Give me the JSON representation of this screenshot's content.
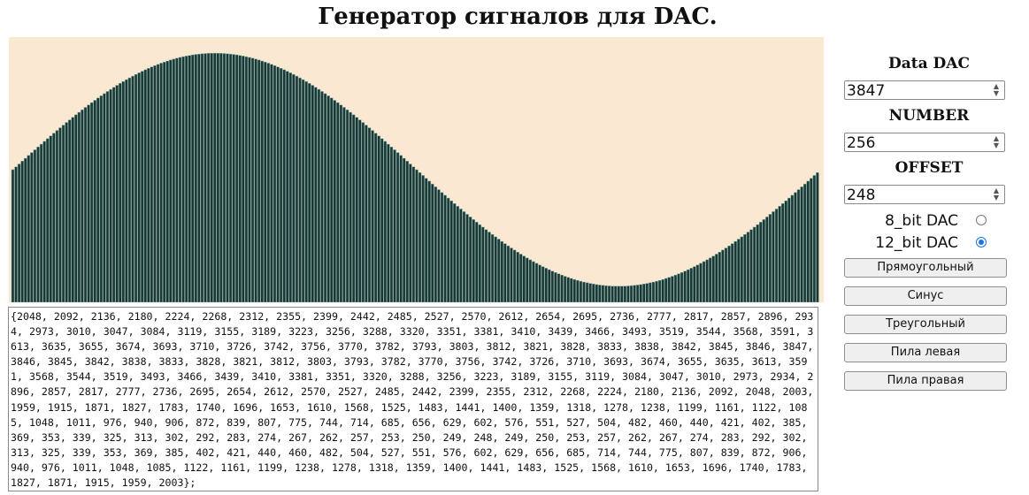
{
  "title": "Генератор сигналов для DAC.",
  "controls": {
    "data_dac_label": "Data DAC",
    "data_dac_value": "3847",
    "number_label": "NUMBER",
    "number_value": "256",
    "offset_label": "OFFSET",
    "offset_value": "248",
    "radio_8bit_label": "8_bit DAC",
    "radio_12bit_label": "12_bit DAC",
    "selected_mode": "12_bit DAC"
  },
  "buttons": {
    "square": "Прямоугольный",
    "sine": "Синус",
    "triangle": "Треугольный",
    "saw_left": "Пила левая",
    "saw_right": "Пила правая"
  },
  "output_text": "{2048, 2092, 2136, 2180, 2224, 2268, 2312, 2355, 2399, 2442, 2485, 2527, 2570, 2612, 2654, 2695, 2736, 2777, 2817, 2857, 2896, 2934, 2973, 3010, 3047, 3084, 3119, 3155, 3189, 3223, 3256, 3288, 3320, 3351, 3381, 3410, 3439, 3466, 3493, 3519, 3544, 3568, 3591, 3613, 3635, 3655, 3674, 3693, 3710, 3726, 3742, 3756, 3770, 3782, 3793, 3803, 3812, 3821, 3828, 3833, 3838, 3842, 3845, 3846, 3847, 3846, 3845, 3842, 3838, 3833, 3828, 3821, 3812, 3803, 3793, 3782, 3770, 3756, 3742, 3726, 3710, 3693, 3674, 3655, 3635, 3613, 3591, 3568, 3544, 3519, 3493, 3466, 3439, 3410, 3381, 3351, 3320, 3288, 3256, 3223, 3189, 3155, 3119, 3084, 3047, 3010, 2973, 2934, 2896, 2857, 2817, 2777, 2736, 2695, 2654, 2612, 2570, 2527, 2485, 2442, 2399, 2355, 2312, 2268, 2224, 2180, 2136, 2092, 2048, 2003, 1959, 1915, 1871, 1827, 1783, 1740, 1696, 1653, 1610, 1568, 1525, 1483, 1441, 1400, 1359, 1318, 1278, 1238, 1199, 1161, 1122, 1085, 1048, 1011, 976, 940, 906, 872, 839, 807, 775, 744, 714, 685, 656, 629, 602, 576, 551, 527, 504, 482, 460, 440, 421, 402, 385, 369, 353, 339, 325, 313, 302, 292, 283, 274, 267, 262, 257, 253, 250, 249, 248, 249, 250, 253, 257, 262, 267, 274, 283, 292, 302, 313, 325, 339, 353, 369, 385, 402, 421, 440, 460, 482, 504, 527, 551, 576, 602, 629, 656, 685, 714, 744, 775, 807, 839, 872, 906, 940, 976, 1011, 1048, 1085, 1122, 1161, 1199, 1238, 1278, 1318, 1359, 1400, 1441, 1483, 1525, 1568, 1610, 1653, 1696, 1740, 1783, 1827, 1871, 1915, 1959, 2003};",
  "chart_data": {
    "type": "bar",
    "ylim": [
      0,
      4095
    ],
    "values": [
      2048,
      2092,
      2136,
      2180,
      2224,
      2268,
      2312,
      2355,
      2399,
      2442,
      2485,
      2527,
      2570,
      2612,
      2654,
      2695,
      2736,
      2777,
      2817,
      2857,
      2896,
      2934,
      2973,
      3010,
      3047,
      3084,
      3119,
      3155,
      3189,
      3223,
      3256,
      3288,
      3320,
      3351,
      3381,
      3410,
      3439,
      3466,
      3493,
      3519,
      3544,
      3568,
      3591,
      3613,
      3635,
      3655,
      3674,
      3693,
      3710,
      3726,
      3742,
      3756,
      3770,
      3782,
      3793,
      3803,
      3812,
      3821,
      3828,
      3833,
      3838,
      3842,
      3845,
      3846,
      3847,
      3846,
      3845,
      3842,
      3838,
      3833,
      3828,
      3821,
      3812,
      3803,
      3793,
      3782,
      3770,
      3756,
      3742,
      3726,
      3710,
      3693,
      3674,
      3655,
      3635,
      3613,
      3591,
      3568,
      3544,
      3519,
      3493,
      3466,
      3439,
      3410,
      3381,
      3351,
      3320,
      3288,
      3256,
      3223,
      3189,
      3155,
      3119,
      3084,
      3047,
      3010,
      2973,
      2934,
      2896,
      2857,
      2817,
      2777,
      2736,
      2695,
      2654,
      2612,
      2570,
      2527,
      2485,
      2442,
      2399,
      2355,
      2312,
      2268,
      2224,
      2180,
      2136,
      2092,
      2048,
      2003,
      1959,
      1915,
      1871,
      1827,
      1783,
      1740,
      1696,
      1653,
      1610,
      1568,
      1525,
      1483,
      1441,
      1400,
      1359,
      1318,
      1278,
      1238,
      1199,
      1161,
      1122,
      1085,
      1048,
      1011,
      976,
      940,
      906,
      872,
      839,
      807,
      775,
      744,
      714,
      685,
      656,
      629,
      602,
      576,
      551,
      527,
      504,
      482,
      460,
      440,
      421,
      402,
      385,
      369,
      353,
      339,
      325,
      313,
      302,
      292,
      283,
      274,
      267,
      262,
      257,
      253,
      250,
      249,
      248,
      249,
      250,
      253,
      257,
      262,
      267,
      274,
      283,
      292,
      302,
      313,
      325,
      339,
      353,
      369,
      385,
      402,
      421,
      440,
      460,
      482,
      504,
      527,
      551,
      576,
      602,
      629,
      656,
      685,
      714,
      744,
      775,
      807,
      839,
      872,
      906,
      940,
      976,
      1011,
      1048,
      1085,
      1122,
      1161,
      1199,
      1238,
      1278,
      1318,
      1359,
      1400,
      1441,
      1483,
      1525,
      1568,
      1610,
      1653,
      1696,
      1740,
      1783,
      1827,
      1871,
      1915,
      1959,
      2003
    ],
    "colors": {
      "background": "#fbe8d3",
      "bar": "#1b3634",
      "bar_edge": "#7aa89e"
    }
  }
}
